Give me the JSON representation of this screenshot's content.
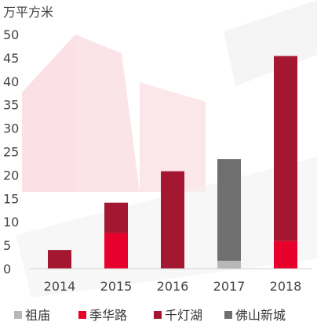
{
  "chart_data": {
    "type": "bar",
    "stacked": true,
    "unit_label": "万平方米",
    "categories": [
      "2014",
      "2015",
      "2016",
      "2017",
      "2018"
    ],
    "ylim": [
      0,
      50
    ],
    "yticks": [
      0,
      5,
      10,
      15,
      20,
      25,
      30,
      35,
      40,
      45,
      50
    ],
    "grid": false,
    "legend_position": "bottom",
    "series": [
      {
        "name": "祖庙",
        "color": "#b7b7b7",
        "values": [
          0,
          0,
          0,
          1.7,
          0
        ]
      },
      {
        "name": "季华路",
        "color": "#e8002d",
        "values": [
          0,
          7.6,
          0,
          0,
          5.9
        ]
      },
      {
        "name": "千灯湖",
        "color": "#a31730",
        "values": [
          4.0,
          6.5,
          20.8,
          0,
          39.5
        ]
      },
      {
        "name": "佛山新城",
        "color": "#6f6f6f",
        "values": [
          0,
          0,
          0,
          21.7,
          0
        ]
      }
    ]
  }
}
